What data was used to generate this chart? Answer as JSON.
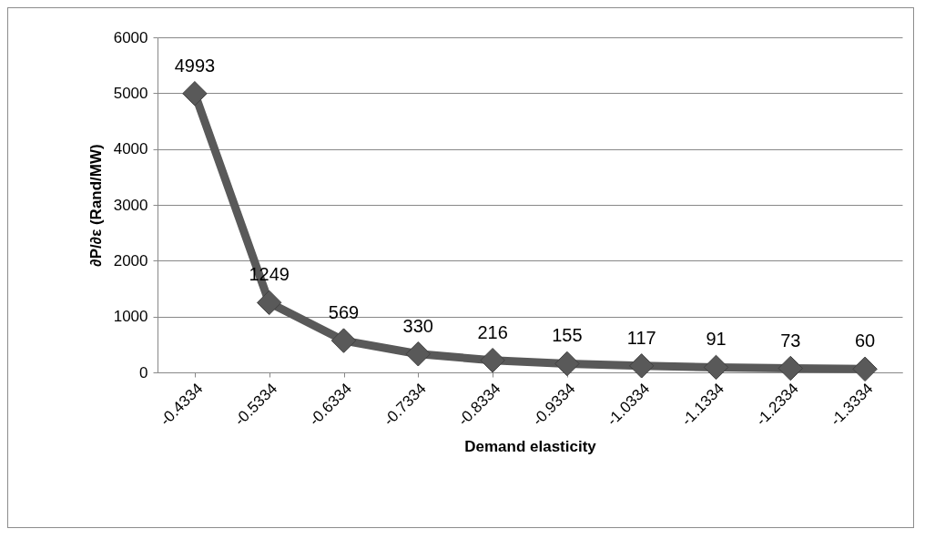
{
  "chart_data": {
    "type": "line",
    "xlabel": "Demand elasticity",
    "ylabel": "∂P/∂ε (Rand/MW)",
    "categories": [
      "-0.4334",
      "-0.5334",
      "-0.6334",
      "-0.7334",
      "-0.8334",
      "-0.9334",
      "-1.0334",
      "-1.1334",
      "-1.2334",
      "-1.3334"
    ],
    "series": [
      {
        "color": "#595959",
        "values": [
          4993,
          1249,
          569,
          330,
          216,
          155,
          117,
          91,
          73,
          60
        ]
      }
    ],
    "ylim": [
      0,
      6000
    ],
    "yticks": [
      0,
      1000,
      2000,
      3000,
      4000,
      5000,
      6000
    ],
    "grid": "y",
    "marker": "diamond",
    "line_style": "solid",
    "data_labels": true
  }
}
